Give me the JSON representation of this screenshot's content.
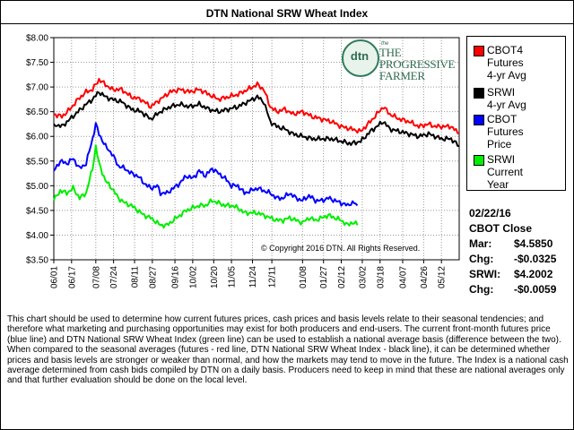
{
  "title": "DTN National SRW Wheat Index",
  "chart_data": {
    "type": "line",
    "title": "DTN National SRW Wheat Index",
    "ylim": [
      3.5,
      8.0
    ],
    "y_ticks": [
      "$8.00",
      "$7.50",
      "$7.00",
      "$6.50",
      "$6.00",
      "$5.50",
      "$5.00",
      "$4.50",
      "$4.00",
      "$3.50"
    ],
    "y_tick_values": [
      8.0,
      7.5,
      7.0,
      6.5,
      6.0,
      5.5,
      5.0,
      4.5,
      4.0,
      3.5
    ],
    "x_ticks": [
      "06/01",
      "06/17",
      "07/08",
      "07/24",
      "08/11",
      "08/27",
      "09/16",
      "10/02",
      "10/20",
      "11/05",
      "11/24",
      "12/11",
      "01/08",
      "01/27",
      "02/12",
      "03/02",
      "03/18",
      "04/07",
      "04/26",
      "05/12"
    ],
    "x_tick_index": [
      0,
      11,
      26,
      37,
      50,
      61,
      75,
      86,
      99,
      110,
      123,
      135,
      154,
      167,
      178,
      191,
      202,
      216,
      229,
      240
    ],
    "n_days": 252,
    "series": [
      {
        "name": "CBOT4 Futures 4-yr Avg",
        "color": "#ff0000",
        "points": [
          [
            0,
            6.45
          ],
          [
            5,
            6.4
          ],
          [
            10,
            6.55
          ],
          [
            15,
            6.75
          ],
          [
            20,
            6.9
          ],
          [
            24,
            6.95
          ],
          [
            28,
            7.15
          ],
          [
            32,
            7.05
          ],
          [
            36,
            6.95
          ],
          [
            42,
            6.95
          ],
          [
            48,
            6.8
          ],
          [
            54,
            6.75
          ],
          [
            60,
            6.6
          ],
          [
            66,
            6.75
          ],
          [
            72,
            6.9
          ],
          [
            78,
            6.95
          ],
          [
            84,
            6.9
          ],
          [
            90,
            6.95
          ],
          [
            96,
            6.85
          ],
          [
            102,
            6.75
          ],
          [
            108,
            6.8
          ],
          [
            114,
            6.85
          ],
          [
            120,
            6.95
          ],
          [
            126,
            7.05
          ],
          [
            130,
            6.95
          ],
          [
            134,
            6.6
          ],
          [
            138,
            6.5
          ],
          [
            143,
            6.55
          ],
          [
            148,
            6.45
          ],
          [
            154,
            6.5
          ],
          [
            160,
            6.4
          ],
          [
            166,
            6.35
          ],
          [
            172,
            6.3
          ],
          [
            178,
            6.2
          ],
          [
            184,
            6.15
          ],
          [
            190,
            6.1
          ],
          [
            196,
            6.3
          ],
          [
            200,
            6.45
          ],
          [
            204,
            6.6
          ],
          [
            208,
            6.45
          ],
          [
            214,
            6.35
          ],
          [
            220,
            6.3
          ],
          [
            226,
            6.2
          ],
          [
            232,
            6.25
          ],
          [
            236,
            6.2
          ],
          [
            240,
            6.2
          ],
          [
            246,
            6.2
          ],
          [
            251,
            6.05
          ]
        ]
      },
      {
        "name": "SRWI 4-yr Avg",
        "color": "#000000",
        "points": [
          [
            0,
            6.25
          ],
          [
            5,
            6.2
          ],
          [
            10,
            6.35
          ],
          [
            15,
            6.5
          ],
          [
            20,
            6.65
          ],
          [
            24,
            6.75
          ],
          [
            28,
            6.9
          ],
          [
            32,
            6.8
          ],
          [
            36,
            6.75
          ],
          [
            42,
            6.7
          ],
          [
            48,
            6.55
          ],
          [
            54,
            6.5
          ],
          [
            60,
            6.35
          ],
          [
            66,
            6.5
          ],
          [
            72,
            6.6
          ],
          [
            78,
            6.65
          ],
          [
            84,
            6.6
          ],
          [
            90,
            6.65
          ],
          [
            96,
            6.55
          ],
          [
            102,
            6.5
          ],
          [
            108,
            6.55
          ],
          [
            114,
            6.6
          ],
          [
            120,
            6.7
          ],
          [
            126,
            6.8
          ],
          [
            130,
            6.7
          ],
          [
            134,
            6.3
          ],
          [
            138,
            6.2
          ],
          [
            143,
            6.15
          ],
          [
            148,
            6.05
          ],
          [
            154,
            6.0
          ],
          [
            160,
            5.95
          ],
          [
            166,
            5.95
          ],
          [
            172,
            5.95
          ],
          [
            178,
            5.9
          ],
          [
            184,
            5.85
          ],
          [
            190,
            5.9
          ],
          [
            196,
            6.1
          ],
          [
            200,
            6.2
          ],
          [
            204,
            6.3
          ],
          [
            208,
            6.15
          ],
          [
            214,
            6.1
          ],
          [
            220,
            6.05
          ],
          [
            226,
            6.0
          ],
          [
            232,
            6.05
          ],
          [
            236,
            6.0
          ],
          [
            240,
            5.95
          ],
          [
            246,
            5.95
          ],
          [
            251,
            5.8
          ]
        ]
      },
      {
        "name": "CBOT Futures Price",
        "color": "#0000ff",
        "points": [
          [
            0,
            5.3
          ],
          [
            4,
            5.5
          ],
          [
            8,
            5.45
          ],
          [
            12,
            5.55
          ],
          [
            16,
            5.35
          ],
          [
            20,
            5.45
          ],
          [
            24,
            5.95
          ],
          [
            26,
            6.25
          ],
          [
            28,
            6.05
          ],
          [
            32,
            5.8
          ],
          [
            36,
            5.65
          ],
          [
            40,
            5.4
          ],
          [
            44,
            5.35
          ],
          [
            48,
            5.25
          ],
          [
            52,
            5.2
          ],
          [
            56,
            5.05
          ],
          [
            60,
            4.95
          ],
          [
            64,
            5.0
          ],
          [
            66,
            4.85
          ],
          [
            70,
            4.85
          ],
          [
            74,
            4.95
          ],
          [
            78,
            5.05
          ],
          [
            82,
            5.2
          ],
          [
            86,
            5.15
          ],
          [
            90,
            5.3
          ],
          [
            94,
            5.2
          ],
          [
            98,
            5.35
          ],
          [
            102,
            5.25
          ],
          [
            106,
            5.15
          ],
          [
            110,
            5.0
          ],
          [
            114,
            5.0
          ],
          [
            118,
            4.85
          ],
          [
            122,
            4.9
          ],
          [
            126,
            4.95
          ],
          [
            130,
            4.9
          ],
          [
            134,
            4.85
          ],
          [
            138,
            4.75
          ],
          [
            142,
            4.75
          ],
          [
            146,
            4.85
          ],
          [
            150,
            4.75
          ],
          [
            154,
            4.7
          ],
          [
            158,
            4.8
          ],
          [
            162,
            4.7
          ],
          [
            166,
            4.7
          ],
          [
            170,
            4.75
          ],
          [
            174,
            4.7
          ],
          [
            178,
            4.65
          ],
          [
            182,
            4.6
          ],
          [
            184,
            4.65
          ],
          [
            186,
            4.65
          ],
          [
            188,
            4.6
          ]
        ]
      },
      {
        "name": "SRWI Current Year",
        "color": "#00ee00",
        "points": [
          [
            0,
            4.7
          ],
          [
            4,
            4.9
          ],
          [
            8,
            4.85
          ],
          [
            12,
            4.95
          ],
          [
            16,
            4.75
          ],
          [
            20,
            4.85
          ],
          [
            24,
            5.35
          ],
          [
            26,
            5.8
          ],
          [
            28,
            5.45
          ],
          [
            32,
            5.1
          ],
          [
            36,
            4.95
          ],
          [
            40,
            4.75
          ],
          [
            44,
            4.65
          ],
          [
            48,
            4.6
          ],
          [
            52,
            4.5
          ],
          [
            56,
            4.4
          ],
          [
            60,
            4.35
          ],
          [
            64,
            4.25
          ],
          [
            66,
            4.2
          ],
          [
            70,
            4.2
          ],
          [
            74,
            4.3
          ],
          [
            78,
            4.4
          ],
          [
            82,
            4.5
          ],
          [
            86,
            4.55
          ],
          [
            90,
            4.6
          ],
          [
            94,
            4.6
          ],
          [
            98,
            4.7
          ],
          [
            102,
            4.65
          ],
          [
            106,
            4.6
          ],
          [
            110,
            4.6
          ],
          [
            114,
            4.55
          ],
          [
            118,
            4.45
          ],
          [
            122,
            4.45
          ],
          [
            126,
            4.45
          ],
          [
            130,
            4.4
          ],
          [
            134,
            4.35
          ],
          [
            138,
            4.3
          ],
          [
            142,
            4.3
          ],
          [
            146,
            4.35
          ],
          [
            150,
            4.3
          ],
          [
            154,
            4.25
          ],
          [
            158,
            4.35
          ],
          [
            162,
            4.3
          ],
          [
            166,
            4.35
          ],
          [
            170,
            4.4
          ],
          [
            174,
            4.35
          ],
          [
            178,
            4.3
          ],
          [
            182,
            4.2
          ],
          [
            184,
            4.25
          ],
          [
            186,
            4.25
          ],
          [
            188,
            4.2
          ]
        ]
      }
    ]
  },
  "logo": {
    "dtn": "dtn",
    "small": "the",
    "progressive_farmer": "THE PROGRESSIVE FARMER"
  },
  "copyright": "© Copyright 2016 DTN. All Rights Reserved.",
  "legend": [
    {
      "label_lines": [
        "CBOT4",
        "Futures",
        "4-yr Avg"
      ],
      "color": "#ff0000"
    },
    {
      "label_lines": [
        "SRWI",
        "4-yr Avg"
      ],
      "color": "#000000"
    },
    {
      "label_lines": [
        "CBOT",
        "Futures",
        "Price"
      ],
      "color": "#0000ff"
    },
    {
      "label_lines": [
        "SRWI",
        "Current",
        "Year"
      ],
      "color": "#00ee00"
    }
  ],
  "summary": {
    "date": "02/22/16",
    "heading": "CBOT Close",
    "mar_label": "Mar:",
    "mar_value": "$4.5850",
    "chg1_label": "Chg:",
    "chg1_value": "-$0.0325",
    "srwi_label": "SRWI:",
    "srwi_value": "$4.2002",
    "chg2_label": "Chg:",
    "chg2_value": "-$0.0059"
  },
  "description": "This chart should be used to determine how current futures prices, cash prices and basis levels relate to their seasonal tendencies; and therefore what marketing and purchasing opportunities may exist for both producers and end-users. The current front-month futures price (blue line) and DTN National SRW Wheat Index (green line) can be used to establish a national average basis (difference between the two). When compared to the seasonal averages (futures - red line, DTN National SRW Wheat Index - black line), it can be determined whether prices and basis levels are stronger or weaker than normal, and how the markets may tend to move in the future. The Index is a national cash average determined from cash bids compiled by DTN on a daily basis. Producers need to keep in mind that these are national averages only and that further evaluation should be done on the local level."
}
